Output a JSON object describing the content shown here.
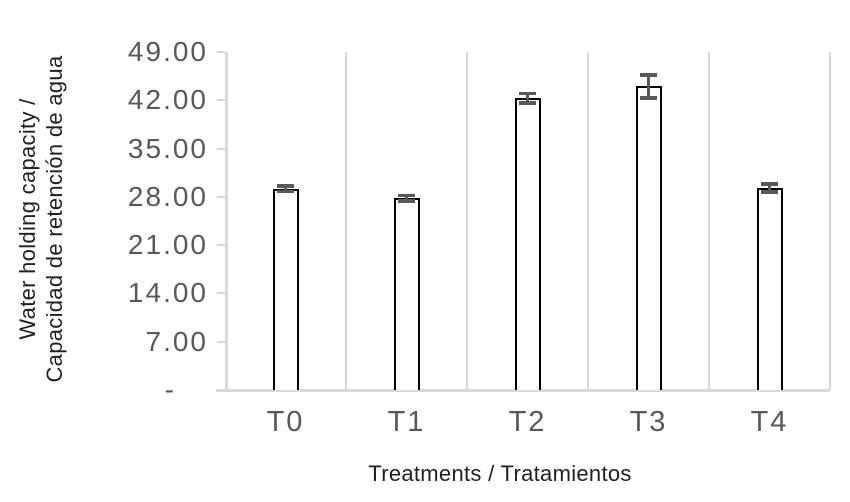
{
  "figure": {
    "background": "#ffffff"
  },
  "chart_data": {
    "type": "bar",
    "title": "",
    "categories": [
      "T0",
      "T1",
      "T2",
      "T3",
      "T4"
    ],
    "values": [
      29.2,
      27.8,
      42.3,
      44.0,
      29.3
    ],
    "error_bars_plus_minus": [
      0.4,
      0.4,
      0.7,
      1.7,
      0.6
    ],
    "xlabel": "Treatments / Tratamientos",
    "ylabel": "Water holding capacity / Capacidad de retención de agua",
    "ylabel_lines": [
      "Water holding capacity /",
      "Capacidad de retención de agua"
    ],
    "ylim": [
      0,
      49
    ],
    "yticks": [
      {
        "value": 49,
        "label": "49.00"
      },
      {
        "value": 42,
        "label": "42.00"
      },
      {
        "value": 35,
        "label": "35.00"
      },
      {
        "value": 28,
        "label": "28.00"
      },
      {
        "value": 21,
        "label": "21.00"
      },
      {
        "value": 14,
        "label": "14.00"
      },
      {
        "value": 7,
        "label": "7.00"
      },
      {
        "value": 0,
        "label": "-"
      }
    ],
    "grid": {
      "vertical_category_separators": true,
      "horizontal": false
    },
    "legend": {
      "visible": false
    },
    "colors": {
      "bar_fill": "#ffffff",
      "bar_border": "#000000",
      "error_bar": "#595959",
      "axis_line": "#d9d9d9",
      "tick_label": "#595959",
      "axis_title": "#231f20"
    }
  }
}
